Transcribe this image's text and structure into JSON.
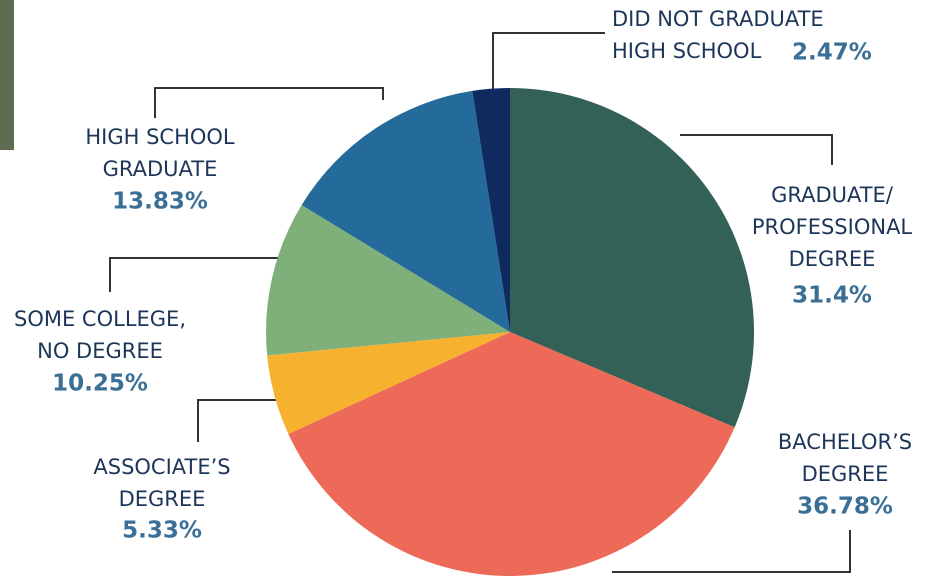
{
  "chart_data": {
    "type": "pie",
    "categories": [
      "GRADUATE/\nPROFESSIONAL\nDEGREE",
      "BACHELOR’S\nDEGREE",
      "ASSOCIATE’S\nDEGREE",
      "SOME COLLEGE,\nNO DEGREE",
      "HIGH SCHOOL\nGRADUATE",
      "DID NOT GRADUATE\nHIGH SCHOOL"
    ],
    "values": [
      31.4,
      36.78,
      5.33,
      10.25,
      13.83,
      2.47
    ],
    "value_labels": [
      "31.4%",
      "36.78%",
      "5.33%",
      "10.25%",
      "13.83%",
      "2.47%"
    ],
    "colors": [
      "#336157",
      "#ee6a58",
      "#f6b22e",
      "#7fb07a",
      "#246b9b",
      "#0e2a5e"
    ]
  }
}
